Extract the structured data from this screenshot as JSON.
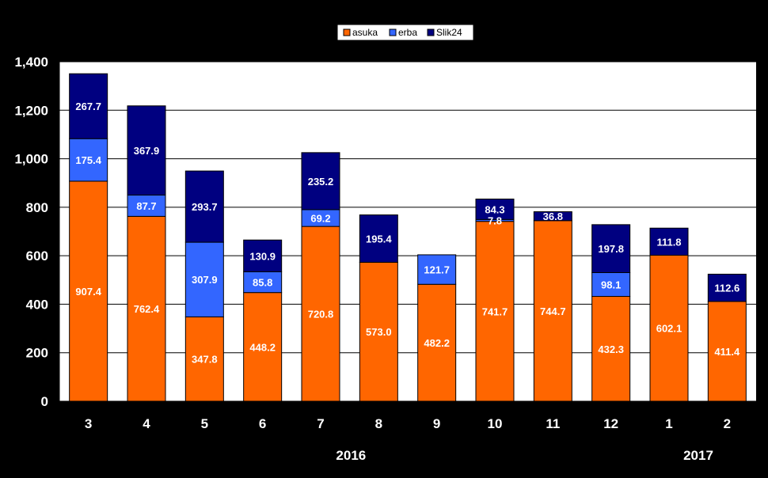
{
  "chart_data": {
    "type": "bar",
    "stacked": true,
    "categories": [
      "3",
      "4",
      "5",
      "6",
      "7",
      "8",
      "9",
      "10",
      "11",
      "12",
      "1",
      "2"
    ],
    "year_labels": [
      {
        "label": "2016",
        "at_category": "8"
      },
      {
        "label": "2017",
        "at_category": "1"
      }
    ],
    "series": [
      {
        "name": "asuka",
        "color": "#FF6600",
        "values": [
          907.4,
          762.4,
          347.8,
          448.2,
          720.8,
          573.0,
          482.2,
          741.7,
          744.7,
          432.3,
          602.1,
          411.4
        ]
      },
      {
        "name": "erba",
        "color": "#3366FF",
        "values": [
          175.4,
          87.7,
          307.9,
          85.8,
          69.2,
          null,
          121.7,
          7.8,
          null,
          98.1,
          null,
          null
        ]
      },
      {
        "name": "Slik24",
        "color": "#000080",
        "values": [
          267.7,
          367.9,
          293.7,
          130.9,
          235.2,
          195.4,
          null,
          84.3,
          36.8,
          197.8,
          111.8,
          112.6
        ]
      }
    ],
    "ylim": [
      0,
      1400
    ],
    "yticks": [
      0,
      200,
      400,
      600,
      800,
      1000,
      1200,
      1400
    ],
    "ytick_labels": [
      "0",
      "200",
      "400",
      "600",
      "800",
      "1,000",
      "1,200",
      "1,400"
    ],
    "grid": true,
    "legend": "top-center",
    "background": "#FFFFFF",
    "page_background": "#000000"
  }
}
